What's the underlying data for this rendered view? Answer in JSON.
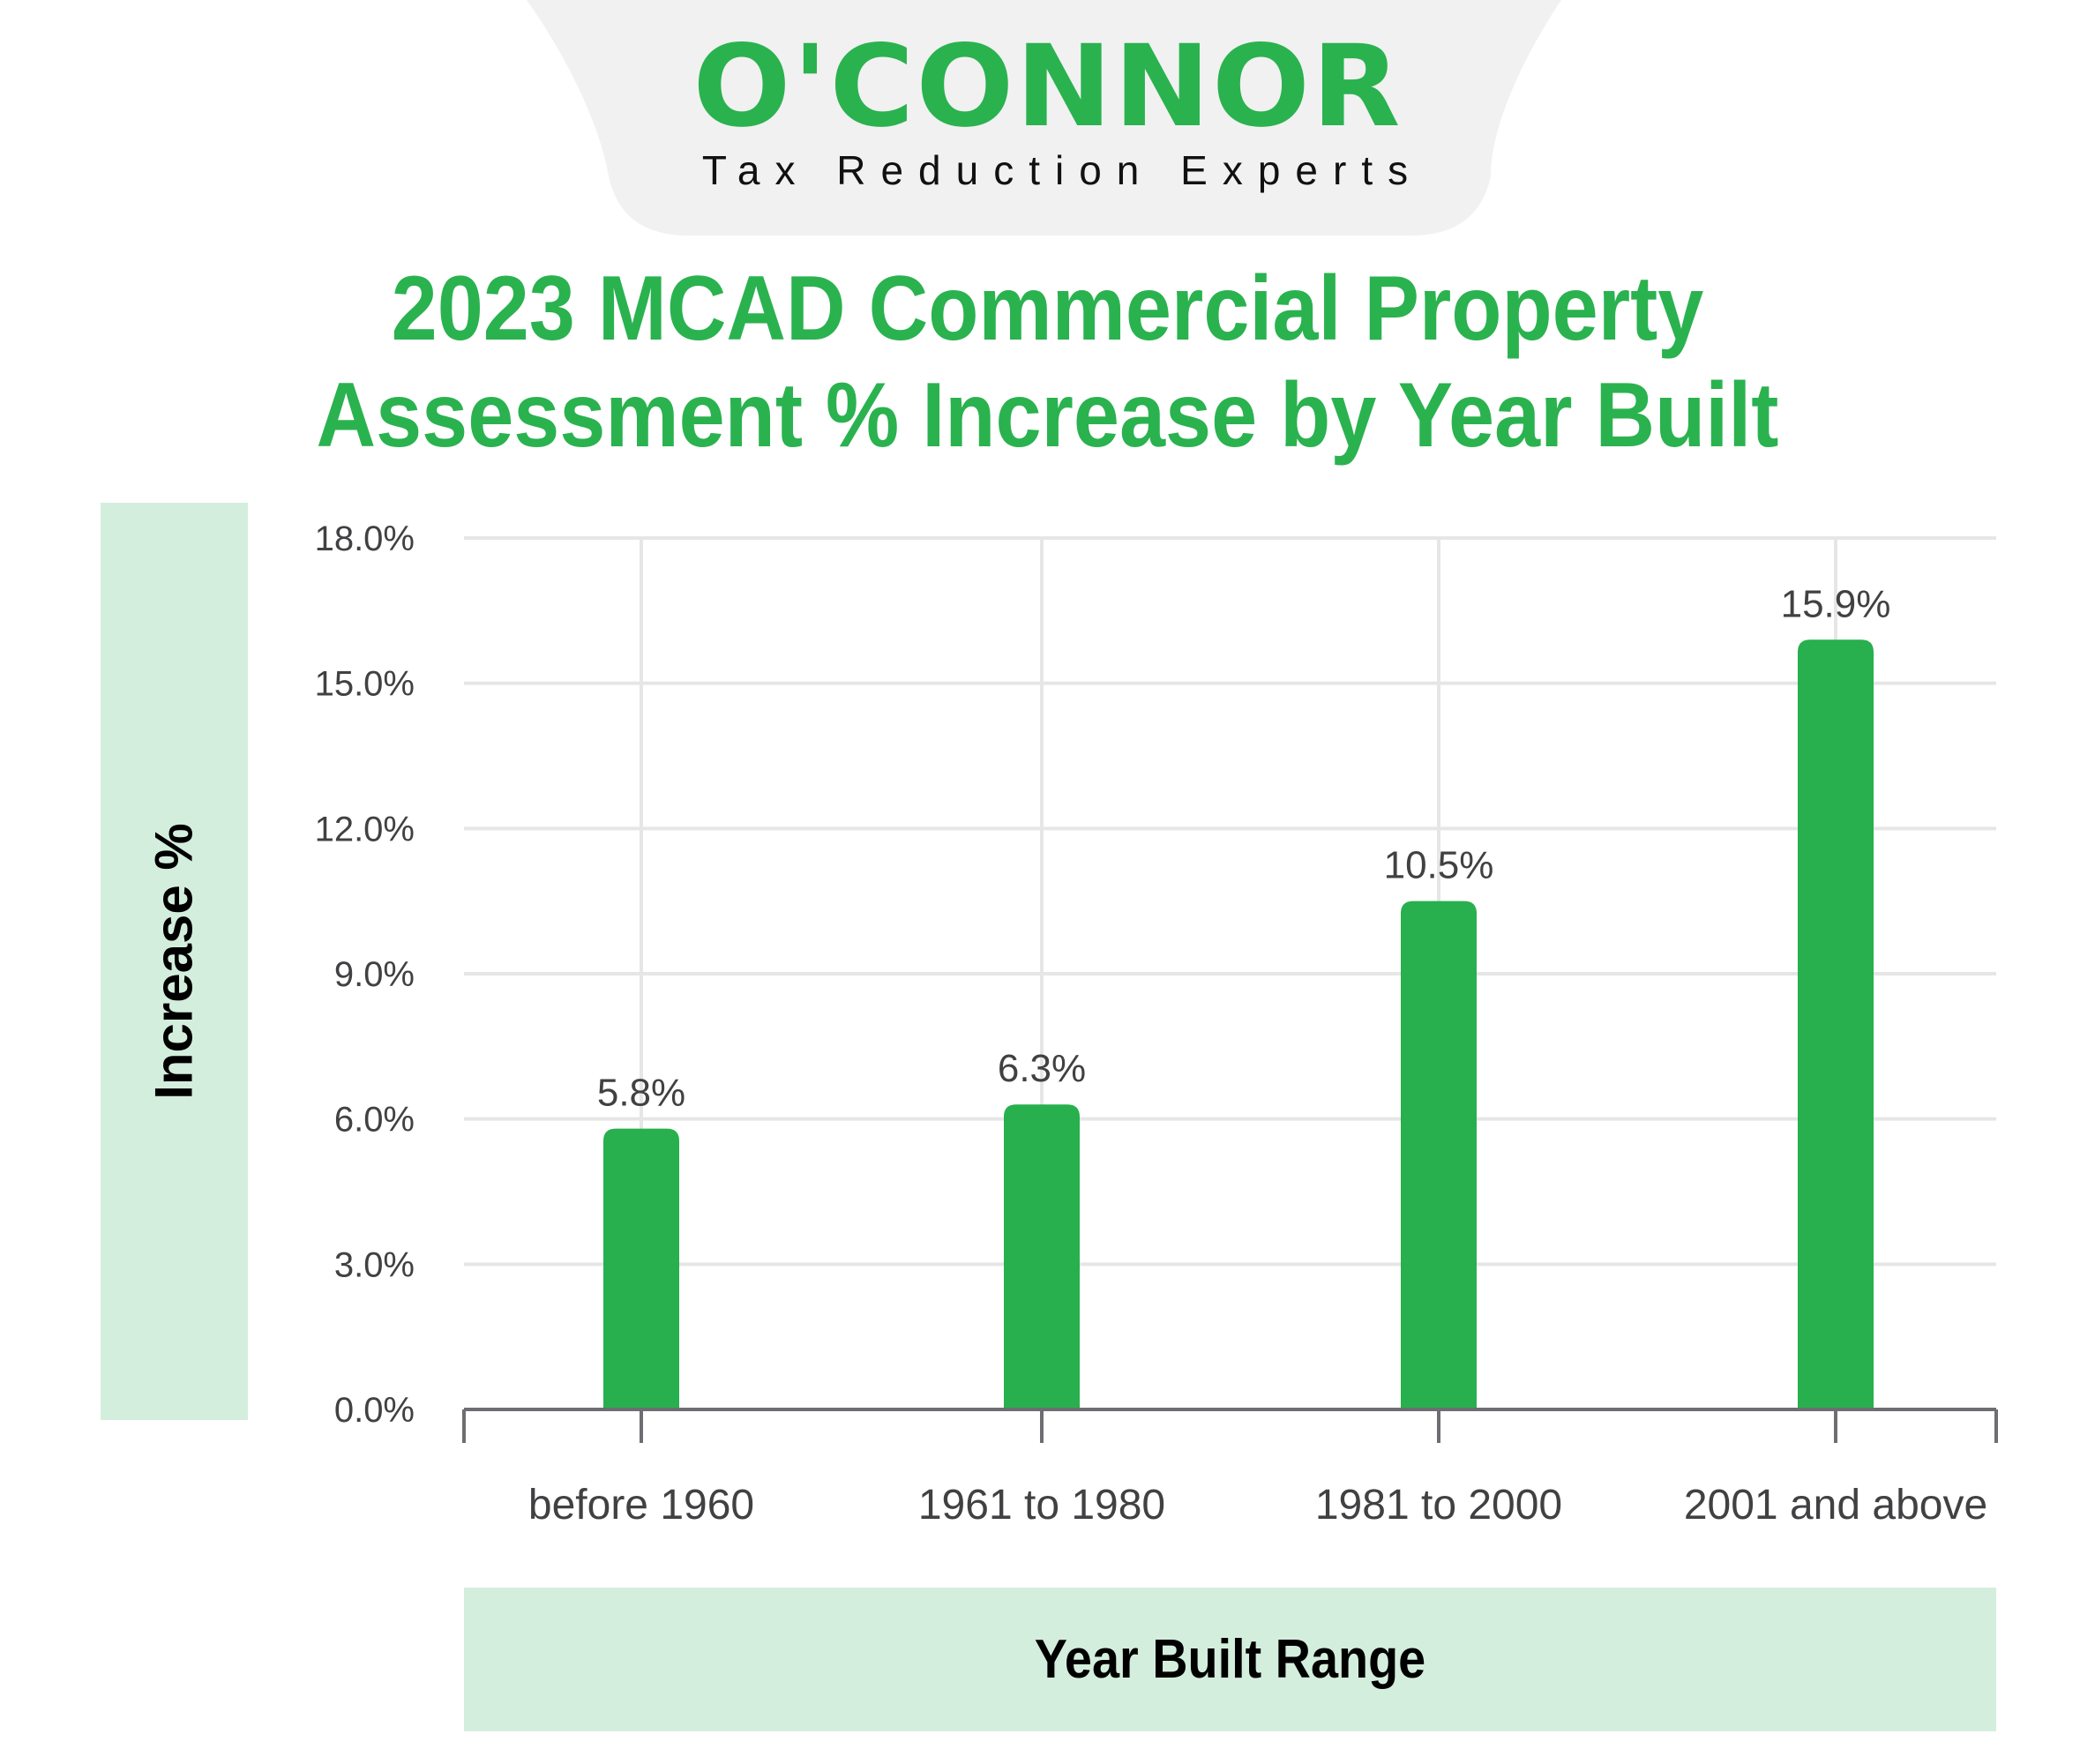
{
  "brand": {
    "logo_text": "O'CONNOR",
    "tagline": "Tax Reduction Experts",
    "brand_color": "#2ab24f",
    "banner_color": "#f1f1f1"
  },
  "title": {
    "line1": "2023 MCAD Commercial Property",
    "line2": "Assessment % Increase by Year Built"
  },
  "chart_data": {
    "type": "bar",
    "title": "2023 MCAD Commercial Property Assessment % Increase by Year Built",
    "xlabel": "Year Built Range",
    "ylabel": "Increase %",
    "categories": [
      "before 1960",
      "1961 to 1980",
      "1981 to 2000",
      "2001 and above"
    ],
    "values": [
      5.8,
      6.3,
      10.5,
      15.9
    ],
    "data_labels": [
      "5.8%",
      "6.3%",
      "10.5%",
      "15.9%"
    ],
    "ylim": [
      0,
      18
    ],
    "yticks": [
      0,
      3,
      6,
      9,
      12,
      15,
      18
    ],
    "ytick_labels": [
      "0.0%",
      "3.0%",
      "6.0%",
      "9.0%",
      "12.0%",
      "15.0%",
      "18.0%"
    ],
    "grid": true,
    "legend": "none",
    "bar_color": "#27b04d",
    "grid_color": "#e6e6e6",
    "axis_color": "#6d6e71",
    "label_band_color": "#d4eedd"
  }
}
